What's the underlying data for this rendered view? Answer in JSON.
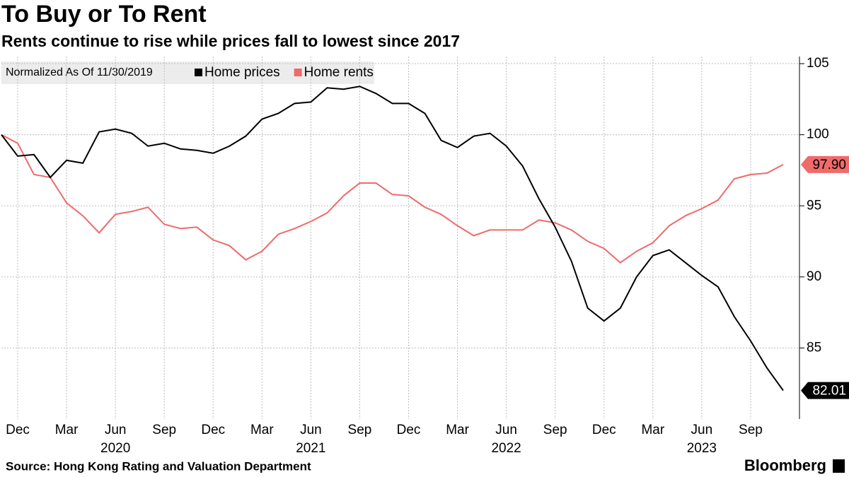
{
  "chart_data": {
    "type": "line",
    "title": "To Buy or To Rent",
    "subtitle": "Rents continue to rise while prices fall to lowest since 2017",
    "legend_title": "Normalized As Of 11/30/2019",
    "legend_position": "top-left",
    "source": "Source: Hong Kong Rating and Valuation Department",
    "logo": "Bloomberg",
    "grid": true,
    "x": [
      "2019-11",
      "2019-12",
      "2020-01",
      "2020-02",
      "2020-03",
      "2020-04",
      "2020-05",
      "2020-06",
      "2020-07",
      "2020-08",
      "2020-09",
      "2020-10",
      "2020-11",
      "2020-12",
      "2021-01",
      "2021-02",
      "2021-03",
      "2021-04",
      "2021-05",
      "2021-06",
      "2021-07",
      "2021-08",
      "2021-09",
      "2021-10",
      "2021-11",
      "2021-12",
      "2022-01",
      "2022-02",
      "2022-03",
      "2022-04",
      "2022-05",
      "2022-06",
      "2022-07",
      "2022-08",
      "2022-09",
      "2022-10",
      "2022-11",
      "2022-12",
      "2023-01",
      "2023-02",
      "2023-03",
      "2023-04",
      "2023-05",
      "2023-06",
      "2023-07",
      "2023-08",
      "2023-09",
      "2023-10",
      "2023-11"
    ],
    "xlim": [
      "2019-11",
      "2023-12"
    ],
    "xticks": [
      {
        "value": "2019-12",
        "label": "Dec"
      },
      {
        "value": "2020-03",
        "label": "Mar"
      },
      {
        "value": "2020-06",
        "label": "Jun"
      },
      {
        "value": "2020-09",
        "label": "Sep"
      },
      {
        "value": "2020-12",
        "label": "Dec"
      },
      {
        "value": "2021-03",
        "label": "Mar"
      },
      {
        "value": "2021-06",
        "label": "Jun"
      },
      {
        "value": "2021-09",
        "label": "Sep"
      },
      {
        "value": "2021-12",
        "label": "Dec"
      },
      {
        "value": "2022-03",
        "label": "Mar"
      },
      {
        "value": "2022-06",
        "label": "Jun"
      },
      {
        "value": "2022-09",
        "label": "Sep"
      },
      {
        "value": "2022-12",
        "label": "Dec"
      },
      {
        "value": "2023-03",
        "label": "Mar"
      },
      {
        "value": "2023-06",
        "label": "Jun"
      },
      {
        "value": "2023-09",
        "label": "Sep"
      }
    ],
    "xyears": [
      {
        "value": "2020-06",
        "label": "2020"
      },
      {
        "value": "2021-06",
        "label": "2021"
      },
      {
        "value": "2022-06",
        "label": "2022"
      },
      {
        "value": "2023-06",
        "label": "2023"
      }
    ],
    "ylim": [
      80,
      105.5
    ],
    "yticks": [
      85,
      90,
      95,
      100,
      105
    ],
    "series": [
      {
        "name": "Home prices",
        "color": "#000000",
        "values": [
          100,
          98.5,
          98.6,
          97.0,
          98.2,
          98.0,
          100.2,
          100.4,
          100.1,
          99.2,
          99.4,
          99.0,
          98.9,
          98.7,
          99.2,
          99.9,
          101.1,
          101.5,
          102.2,
          102.3,
          103.3,
          103.2,
          103.4,
          102.9,
          102.2,
          102.2,
          101.5,
          99.6,
          99.1,
          99.9,
          100.1,
          99.2,
          97.8,
          95.5,
          93.5,
          91.1,
          87.8,
          86.9,
          87.8,
          90.0,
          91.5,
          91.9,
          91.0,
          90.1,
          89.3,
          87.2,
          85.5,
          83.6,
          82.01
        ]
      },
      {
        "name": "Home rents",
        "color": "#f06a6a",
        "values": [
          100,
          99.4,
          97.2,
          97.0,
          95.2,
          94.3,
          93.1,
          94.4,
          94.6,
          94.9,
          93.7,
          93.4,
          93.5,
          92.6,
          92.2,
          91.2,
          91.8,
          93.0,
          93.4,
          93.9,
          94.5,
          95.7,
          96.6,
          96.6,
          95.8,
          95.7,
          94.9,
          94.4,
          93.6,
          92.9,
          93.3,
          93.3,
          93.3,
          94.0,
          93.8,
          93.3,
          92.5,
          92.0,
          91.0,
          91.8,
          92.4,
          93.6,
          94.3,
          94.8,
          95.4,
          96.9,
          97.2,
          97.3,
          97.9
        ],
        "value_labels": [
          null,
          null,
          null,
          null,
          null,
          null,
          null,
          null,
          null,
          null,
          null,
          null,
          null,
          null,
          null,
          null,
          null,
          null,
          null,
          null,
          null,
          null,
          null,
          null,
          null,
          null,
          null,
          null,
          null,
          null,
          null,
          null,
          null,
          null,
          null,
          null,
          null,
          null,
          null,
          null,
          null,
          null,
          null,
          null,
          null,
          null,
          null,
          null,
          "97.90"
        ]
      }
    ]
  }
}
